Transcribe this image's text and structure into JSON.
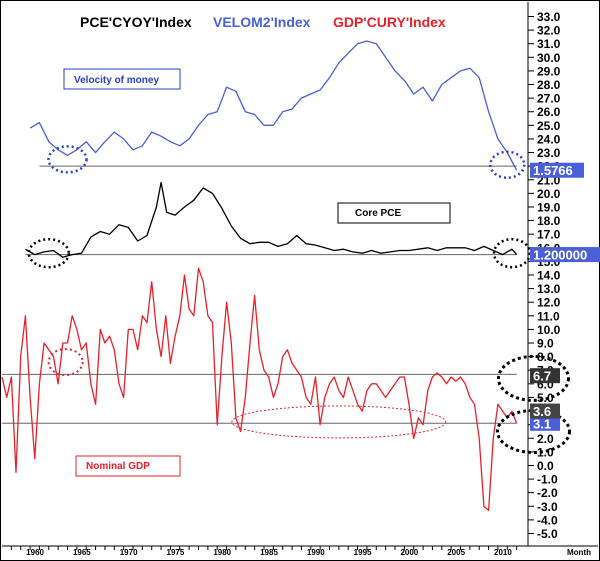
{
  "chart_data": {
    "type": "line",
    "legend": [
      {
        "label": "PCE'CYOY'Index",
        "color": "#000000"
      },
      {
        "label": "VELOM2'Index",
        "color": "#4a5fd8"
      },
      {
        "label": "GDP'CURY'Index",
        "color": "#e8202a"
      }
    ],
    "y_axis": {
      "position": "right",
      "range": [
        -5.0,
        33.0
      ],
      "ticks": [
        "33.0",
        "32.0",
        "31.0",
        "30.0",
        "29.0",
        "28.0",
        "27.0",
        "26.0",
        "25.0",
        "24.0",
        "23.0",
        "22.0",
        "21.0",
        "20.0",
        "19.0",
        "18.0",
        "17.0",
        "16.0",
        "15.0",
        "14.0",
        "13.0",
        "12.0",
        "11.0",
        "10.0",
        "9.0",
        "8.0",
        "7.0",
        "6.0",
        "5.0",
        "4.0",
        "3.0",
        "2.0",
        "1.0",
        "0.0",
        "-1.0",
        "-2.0",
        "-3.0",
        "-4.0",
        "-5.0"
      ]
    },
    "x_axis": {
      "range": [
        1957,
        2013
      ],
      "ticks": [
        "1960",
        "1965",
        "1970",
        "1975",
        "1980",
        "1985",
        "1990",
        "1995",
        "2000",
        "2005",
        "2010"
      ],
      "label": "Month"
    },
    "annotations": [
      {
        "text": "Velocity of money",
        "color": "#2a3fc8"
      },
      {
        "text": "Core PCE",
        "color": "#000000"
      },
      {
        "text": "Nominal GDP",
        "color": "#e8202a"
      }
    ],
    "last_value_labels": [
      {
        "text": "1.5766",
        "background": "#4a5fd8",
        "color": "#ffffff",
        "y": 21.7
      },
      {
        "text": "1.200000",
        "background": "#4a5fd8",
        "color": "#ffffff",
        "y": 15.5
      },
      {
        "text": "6.7",
        "background": "#333333",
        "color": "#ffffff",
        "y": 6.6
      },
      {
        "text": "3.1",
        "background": "#4a5fd8",
        "color": "#ffffff",
        "y": 3.1
      },
      {
        "text": "3.6",
        "background": "#444444",
        "color": "#ffffff",
        "y": 4.0
      }
    ],
    "reference_lines": [
      {
        "series": "VELOM2'Index",
        "y": 22.0,
        "x_from": 1961.0,
        "x_to": 2012.0
      },
      {
        "series": "PCE'CYOY'Index",
        "y": 15.5,
        "x_from": 1959.5,
        "x_to": 2012.0
      },
      {
        "series": "GDP'CURY'Index",
        "y": 6.7,
        "x_from": 1957.0,
        "x_to": 2012.0
      },
      {
        "series": "GDP'CURY'Index",
        "y": 3.1,
        "x_from": 1957.0,
        "x_to": 2012.0
      }
    ],
    "series": [
      {
        "name": "VELOM2'Index",
        "color": "#4a5fd8",
        "x": [
          1960.0,
          1961.0,
          1962.0,
          1963.0,
          1964.0,
          1965.0,
          1966.0,
          1967.0,
          1968.0,
          1969.0,
          1970.0,
          1971.0,
          1972.0,
          1973.0,
          1974.0,
          1975.0,
          1976.0,
          1977.0,
          1978.0,
          1979.0,
          1980.0,
          1981.0,
          1982.0,
          1983.0,
          1984.0,
          1985.0,
          1986.0,
          1987.0,
          1988.0,
          1989.0,
          1990.0,
          1991.0,
          1992.0,
          1993.0,
          1994.0,
          1995.0,
          1996.0,
          1997.0,
          1998.0,
          1999.0,
          2000.0,
          2001.0,
          2002.0,
          2003.0,
          2004.0,
          2005.0,
          2006.0,
          2007.0,
          2008.0,
          2009.0,
          2010.0,
          2011.0,
          2012.0
        ],
        "values": [
          24.8,
          25.2,
          23.8,
          23.2,
          22.8,
          23.2,
          23.8,
          23.0,
          23.8,
          24.5,
          24.0,
          23.2,
          23.5,
          24.5,
          24.2,
          23.8,
          23.5,
          24.0,
          25.0,
          25.8,
          26.0,
          27.8,
          27.5,
          26.0,
          25.8,
          25.0,
          25.0,
          26.0,
          26.2,
          27.0,
          27.3,
          27.6,
          28.5,
          29.6,
          30.3,
          31.0,
          31.2,
          31.0,
          30.0,
          29.0,
          28.3,
          27.3,
          27.8,
          26.8,
          28.0,
          28.5,
          29.0,
          29.2,
          28.5,
          26.0,
          24.0,
          23.0,
          21.7
        ]
      },
      {
        "name": "PCE'CYOY'Index",
        "color": "#000000",
        "x": [
          1959.5,
          1960.5,
          1961.5,
          1962.5,
          1963.5,
          1964.5,
          1965.5,
          1966.5,
          1967.5,
          1968.5,
          1969.5,
          1970.5,
          1971.5,
          1972.5,
          1973.5,
          1974.0,
          1974.6,
          1975.5,
          1976.5,
          1977.5,
          1978.5,
          1979.5,
          1980.5,
          1981.5,
          1982.5,
          1983.5,
          1984.5,
          1985.5,
          1986.5,
          1987.5,
          1988.5,
          1989.5,
          1990.5,
          1991.5,
          1992.5,
          1993.5,
          1994.5,
          1995.5,
          1996.5,
          1997.5,
          1998.5,
          1999.5,
          2000.5,
          2001.5,
          2002.5,
          2003.5,
          2004.5,
          2005.5,
          2006.5,
          2007.5,
          2008.5,
          2009.5,
          2010.5,
          2011.5,
          2012.0
        ],
        "values": [
          15.9,
          15.5,
          15.7,
          15.8,
          15.3,
          15.5,
          15.6,
          16.8,
          17.2,
          17.0,
          17.7,
          17.5,
          16.5,
          16.9,
          19.0,
          20.8,
          18.6,
          18.4,
          19.0,
          19.5,
          20.4,
          20.0,
          18.9,
          17.6,
          16.7,
          16.3,
          16.4,
          16.4,
          16.1,
          16.3,
          16.9,
          16.3,
          16.2,
          16.0,
          15.8,
          15.9,
          15.7,
          15.6,
          15.8,
          15.6,
          15.7,
          15.8,
          15.8,
          15.9,
          16.0,
          15.8,
          16.0,
          16.0,
          16.0,
          15.8,
          16.1,
          15.8,
          15.5,
          15.9,
          15.5
        ]
      },
      {
        "name": "GDP'CURY'Index",
        "color": "#e8202a",
        "x": [
          1957.0,
          1957.5,
          1958.0,
          1958.5,
          1959.0,
          1959.5,
          1960.0,
          1960.5,
          1961.0,
          1961.5,
          1962.0,
          1962.5,
          1963.0,
          1963.5,
          1964.0,
          1964.5,
          1965.0,
          1965.5,
          1966.0,
          1966.5,
          1967.0,
          1967.5,
          1968.0,
          1968.5,
          1969.0,
          1969.5,
          1970.0,
          1970.5,
          1971.0,
          1971.5,
          1972.0,
          1972.5,
          1973.0,
          1973.5,
          1974.0,
          1974.5,
          1975.0,
          1975.5,
          1976.0,
          1976.5,
          1977.0,
          1977.5,
          1978.0,
          1978.5,
          1979.0,
          1979.5,
          1980.0,
          1980.5,
          1981.0,
          1981.5,
          1982.0,
          1982.5,
          1983.0,
          1983.5,
          1984.0,
          1984.5,
          1985.0,
          1985.5,
          1986.0,
          1986.5,
          1987.0,
          1987.5,
          1988.0,
          1988.5,
          1989.0,
          1989.5,
          1990.0,
          1990.5,
          1991.0,
          1991.5,
          1992.0,
          1992.5,
          1993.0,
          1993.5,
          1994.0,
          1994.5,
          1995.0,
          1995.5,
          1996.0,
          1996.5,
          1997.0,
          1997.5,
          1998.0,
          1998.5,
          1999.0,
          1999.5,
          2000.0,
          2000.5,
          2001.0,
          2001.5,
          2002.0,
          2002.5,
          2003.0,
          2003.5,
          2004.0,
          2004.5,
          2005.0,
          2005.5,
          2006.0,
          2006.5,
          2007.0,
          2007.5,
          2008.0,
          2008.5,
          2009.0,
          2009.5,
          2010.0,
          2010.5,
          2011.0,
          2011.5,
          2012.0
        ],
        "values": [
          6.5,
          5.0,
          6.5,
          -0.5,
          8.0,
          11.0,
          5.0,
          0.5,
          6.0,
          9.0,
          8.5,
          8.0,
          6.0,
          9.0,
          9.0,
          11.0,
          10.0,
          8.5,
          9.0,
          6.0,
          4.5,
          10.0,
          9.0,
          9.5,
          8.5,
          6.0,
          5.0,
          10.0,
          10.0,
          8.5,
          11.0,
          10.5,
          13.5,
          10.0,
          8.0,
          11.0,
          7.5,
          9.5,
          11.0,
          14.0,
          11.5,
          11.0,
          14.5,
          13.5,
          11.0,
          10.5,
          3.0,
          8.0,
          12.0,
          9.0,
          3.5,
          2.5,
          5.0,
          9.0,
          12.5,
          8.5,
          7.0,
          6.5,
          5.0,
          6.0,
          8.0,
          8.5,
          7.5,
          7.0,
          6.5,
          5.0,
          4.5,
          6.5,
          3.0,
          5.0,
          6.0,
          6.5,
          5.5,
          5.0,
          6.5,
          5.5,
          4.5,
          4.0,
          5.5,
          6.0,
          6.0,
          5.5,
          5.0,
          5.5,
          6.0,
          6.5,
          6.5,
          4.5,
          2.0,
          3.5,
          3.0,
          5.5,
          6.5,
          6.8,
          6.5,
          6.0,
          6.5,
          6.2,
          6.5,
          6.0,
          5.0,
          4.5,
          2.0,
          -3.0,
          -3.3,
          2.0,
          4.5,
          4.0,
          3.5,
          4.0,
          3.1
        ]
      }
    ]
  }
}
